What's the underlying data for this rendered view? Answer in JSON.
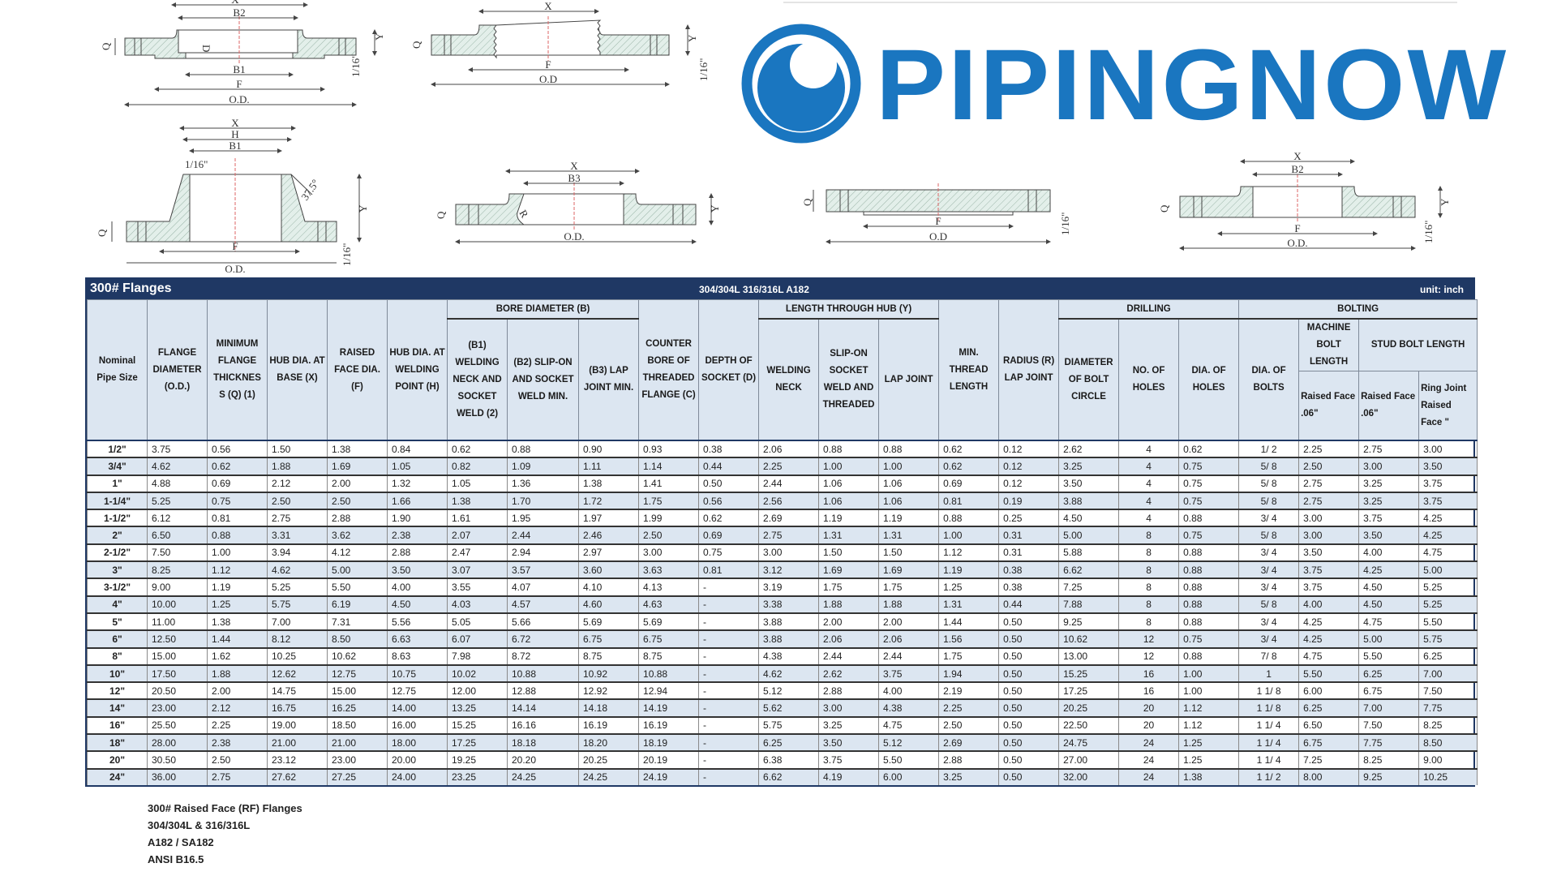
{
  "brand": {
    "name": "PIPINGNOW",
    "color": "#1a76c0"
  },
  "drawings": {
    "slip_on": {
      "x": "X",
      "b2": "B2",
      "d": "D",
      "q": "Q",
      "y": "Y",
      "b1": "B1",
      "f": "F",
      "od": "O.D.",
      "rf": "1/16\""
    },
    "threaded": {
      "x": "X",
      "q": "Q",
      "y": "Y",
      "f": "F",
      "od": "O.D",
      "rf": "1/16\""
    },
    "weld_neck": {
      "x": "X",
      "h": "H",
      "b1": "B1",
      "rf_top": "1/16\"",
      "angle": "37.5°",
      "y": "Y",
      "q": "Q",
      "f": "F",
      "od": "O.D.",
      "rf": "1/16\""
    },
    "lap_joint": {
      "x": "X",
      "b3": "B3",
      "q": "Q",
      "y": "Y",
      "od": "O.D.",
      "r": "R"
    },
    "blind": {
      "q": "Q",
      "f": "F",
      "od": "O.D",
      "rf": "1/16\""
    },
    "socket_weld": {
      "x": "X",
      "b2": "B2",
      "q": "Q",
      "y": "Y",
      "f": "F",
      "od": "O.D.",
      "rf": "1/16\""
    }
  },
  "table": {
    "title": "300# Flanges",
    "material": "304/304L 316/316L A182",
    "unit": "unit: inch",
    "colors": {
      "title_bar": "#1f3864",
      "header": "#dce6f1",
      "alt_row": "#dce6f1"
    },
    "headers": {
      "nominal": "Nominal Pipe Size",
      "od": "FLANGE DIAMETER (O.D.)",
      "q": "MINIMUM FLANGE THICKNES S (Q) (1)",
      "x": "HUB DIA. AT BASE (X)",
      "f": "RAISED FACE DIA. (F)",
      "h": "HUB DIA. AT WELDING POINT (H)",
      "bore_group": "BORE DIAMETER (B)",
      "b1": "(B1) WELDING NECK AND SOCKET WELD (2)",
      "b2": "(B2) SLIP-ON AND SOCKET WELD MIN.",
      "b3": "(B3) LAP JOINT MIN.",
      "c": "COUNTER BORE OF THREADED FLANGE (C)",
      "d": "DEPTH OF SOCKET (D)",
      "y_group": "LENGTH THROUGH HUB (Y)",
      "y_wn": "WELDING NECK",
      "y_so": "SLIP-ON SOCKET WELD AND THREADED",
      "y_lj": "LAP JOINT",
      "thread": "MIN. THREAD LENGTH",
      "radius": "RADIUS (R) LAP JOINT",
      "drilling_group": "DRILLING",
      "bolt_circle": "DIAMETER OF BOLT CIRCLE",
      "holes": "NO. OF HOLES",
      "hole_dia": "DIA. OF HOLES",
      "bolting_group": "BOLTING",
      "bolt_dia": "DIA. OF BOLTS",
      "machine_bolt": "MACHINE BOLT LENGTH",
      "machine_rf": "Raised Face .06\"",
      "stud_bolt": "STUD BOLT LENGTH",
      "stud_rf": "Raised Face .06\"",
      "stud_rj": "Ring Joint Raised Face \""
    },
    "rows": [
      [
        "1/2\"",
        "3.75",
        "0.56",
        "1.50",
        "1.38",
        "0.84",
        "0.62",
        "0.88",
        "0.90",
        "0.93",
        "0.38",
        "2.06",
        "0.88",
        "0.88",
        "0.62",
        "0.12",
        "2.62",
        "4",
        "0.62",
        "1/ 2",
        "2.25",
        "2.75",
        "3.00"
      ],
      [
        "3/4\"",
        "4.62",
        "0.62",
        "1.88",
        "1.69",
        "1.05",
        "0.82",
        "1.09",
        "1.11",
        "1.14",
        "0.44",
        "2.25",
        "1.00",
        "1.00",
        "0.62",
        "0.12",
        "3.25",
        "4",
        "0.75",
        "5/ 8",
        "2.50",
        "3.00",
        "3.50"
      ],
      [
        "1\"",
        "4.88",
        "0.69",
        "2.12",
        "2.00",
        "1.32",
        "1.05",
        "1.36",
        "1.38",
        "1.41",
        "0.50",
        "2.44",
        "1.06",
        "1.06",
        "0.69",
        "0.12",
        "3.50",
        "4",
        "0.75",
        "5/ 8",
        "2.75",
        "3.25",
        "3.75"
      ],
      [
        "1-1/4\"",
        "5.25",
        "0.75",
        "2.50",
        "2.50",
        "1.66",
        "1.38",
        "1.70",
        "1.72",
        "1.75",
        "0.56",
        "2.56",
        "1.06",
        "1.06",
        "0.81",
        "0.19",
        "3.88",
        "4",
        "0.75",
        "5/ 8",
        "2.75",
        "3.25",
        "3.75"
      ],
      [
        "1-1/2\"",
        "6.12",
        "0.81",
        "2.75",
        "2.88",
        "1.90",
        "1.61",
        "1.95",
        "1.97",
        "1.99",
        "0.62",
        "2.69",
        "1.19",
        "1.19",
        "0.88",
        "0.25",
        "4.50",
        "4",
        "0.88",
        "3/ 4",
        "3.00",
        "3.75",
        "4.25"
      ],
      [
        "2\"",
        "6.50",
        "0.88",
        "3.31",
        "3.62",
        "2.38",
        "2.07",
        "2.44",
        "2.46",
        "2.50",
        "0.69",
        "2.75",
        "1.31",
        "1.31",
        "1.00",
        "0.31",
        "5.00",
        "8",
        "0.75",
        "5/ 8",
        "3.00",
        "3.50",
        "4.25"
      ],
      [
        "2-1/2\"",
        "7.50",
        "1.00",
        "3.94",
        "4.12",
        "2.88",
        "2.47",
        "2.94",
        "2.97",
        "3.00",
        "0.75",
        "3.00",
        "1.50",
        "1.50",
        "1.12",
        "0.31",
        "5.88",
        "8",
        "0.88",
        "3/ 4",
        "3.50",
        "4.00",
        "4.75"
      ],
      [
        "3\"",
        "8.25",
        "1.12",
        "4.62",
        "5.00",
        "3.50",
        "3.07",
        "3.57",
        "3.60",
        "3.63",
        "0.81",
        "3.12",
        "1.69",
        "1.69",
        "1.19",
        "0.38",
        "6.62",
        "8",
        "0.88",
        "3/ 4",
        "3.75",
        "4.25",
        "5.00"
      ],
      [
        "3-1/2\"",
        "9.00",
        "1.19",
        "5.25",
        "5.50",
        "4.00",
        "3.55",
        "4.07",
        "4.10",
        "4.13",
        "-",
        "3.19",
        "1.75",
        "1.75",
        "1.25",
        "0.38",
        "7.25",
        "8",
        "0.88",
        "3/ 4",
        "3.75",
        "4.50",
        "5.25"
      ],
      [
        "4\"",
        "10.00",
        "1.25",
        "5.75",
        "6.19",
        "4.50",
        "4.03",
        "4.57",
        "4.60",
        "4.63",
        "-",
        "3.38",
        "1.88",
        "1.88",
        "1.31",
        "0.44",
        "7.88",
        "8",
        "0.88",
        "5/ 8",
        "4.00",
        "4.50",
        "5.25"
      ],
      [
        "5\"",
        "11.00",
        "1.38",
        "7.00",
        "7.31",
        "5.56",
        "5.05",
        "5.66",
        "5.69",
        "5.69",
        "-",
        "3.88",
        "2.00",
        "2.00",
        "1.44",
        "0.50",
        "9.25",
        "8",
        "0.88",
        "3/ 4",
        "4.25",
        "4.75",
        "5.50"
      ],
      [
        "6\"",
        "12.50",
        "1.44",
        "8.12",
        "8.50",
        "6.63",
        "6.07",
        "6.72",
        "6.75",
        "6.75",
        "-",
        "3.88",
        "2.06",
        "2.06",
        "1.56",
        "0.50",
        "10.62",
        "12",
        "0.75",
        "3/ 4",
        "4.25",
        "5.00",
        "5.75"
      ],
      [
        "8\"",
        "15.00",
        "1.62",
        "10.25",
        "10.62",
        "8.63",
        "7.98",
        "8.72",
        "8.75",
        "8.75",
        "-",
        "4.38",
        "2.44",
        "2.44",
        "1.75",
        "0.50",
        "13.00",
        "12",
        "0.88",
        "7/ 8",
        "4.75",
        "5.50",
        "6.25"
      ],
      [
        "10\"",
        "17.50",
        "1.88",
        "12.62",
        "12.75",
        "10.75",
        "10.02",
        "10.88",
        "10.92",
        "10.88",
        "-",
        "4.62",
        "2.62",
        "3.75",
        "1.94",
        "0.50",
        "15.25",
        "16",
        "1.00",
        "1",
        "5.50",
        "6.25",
        "7.00"
      ],
      [
        "12\"",
        "20.50",
        "2.00",
        "14.75",
        "15.00",
        "12.75",
        "12.00",
        "12.88",
        "12.92",
        "12.94",
        "-",
        "5.12",
        "2.88",
        "4.00",
        "2.19",
        "0.50",
        "17.25",
        "16",
        "1.00",
        "1 1/ 8",
        "6.00",
        "6.75",
        "7.50"
      ],
      [
        "14\"",
        "23.00",
        "2.12",
        "16.75",
        "16.25",
        "14.00",
        "13.25",
        "14.14",
        "14.18",
        "14.19",
        "-",
        "5.62",
        "3.00",
        "4.38",
        "2.25",
        "0.50",
        "20.25",
        "20",
        "1.12",
        "1 1/ 8",
        "6.25",
        "7.00",
        "7.75"
      ],
      [
        "16\"",
        "25.50",
        "2.25",
        "19.00",
        "18.50",
        "16.00",
        "15.25",
        "16.16",
        "16.19",
        "16.19",
        "-",
        "5.75",
        "3.25",
        "4.75",
        "2.50",
        "0.50",
        "22.50",
        "20",
        "1.12",
        "1 1/ 4",
        "6.50",
        "7.50",
        "8.25"
      ],
      [
        "18\"",
        "28.00",
        "2.38",
        "21.00",
        "21.00",
        "18.00",
        "17.25",
        "18.18",
        "18.20",
        "18.19",
        "-",
        "6.25",
        "3.50",
        "5.12",
        "2.69",
        "0.50",
        "24.75",
        "24",
        "1.25",
        "1 1/ 4",
        "6.75",
        "7.75",
        "8.50"
      ],
      [
        "20\"",
        "30.50",
        "2.50",
        "23.12",
        "23.00",
        "20.00",
        "19.25",
        "20.20",
        "20.25",
        "20.19",
        "-",
        "6.38",
        "3.75",
        "5.50",
        "2.88",
        "0.50",
        "27.00",
        "24",
        "1.25",
        "1 1/ 4",
        "7.25",
        "8.25",
        "9.00"
      ],
      [
        "24\"",
        "36.00",
        "2.75",
        "27.62",
        "27.25",
        "24.00",
        "23.25",
        "24.25",
        "24.25",
        "24.19",
        "-",
        "6.62",
        "4.19",
        "6.00",
        "3.25",
        "0.50",
        "32.00",
        "24",
        "1.38",
        "1 1/ 2",
        "8.00",
        "9.25",
        "10.25"
      ]
    ]
  },
  "notes": [
    "300# Raised Face (RF) Flanges",
    "304/304L & 316/316L",
    "A182 / SA182",
    "ANSI B16.5"
  ]
}
